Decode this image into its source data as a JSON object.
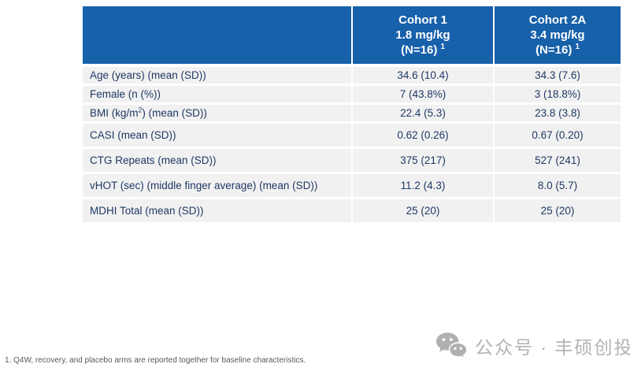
{
  "table": {
    "columns": [
      {
        "label": ""
      },
      {
        "label": "Cohort 1\n1.8 mg/kg\n(N=16) ^1^"
      },
      {
        "label": "Cohort 2A\n3.4 mg/kg\n(N=16) ^1^"
      }
    ],
    "rows": [
      {
        "label": "Age (years) (mean (SD))",
        "cohort1": "34.6 (10.4)",
        "cohort2a": "34.3 (7.6)"
      },
      {
        "label": "Female (n (%))",
        "cohort1": "7 (43.8%)",
        "cohort2a": "3 (18.8%)"
      },
      {
        "label": "BMI (kg/m^2^) (mean (SD))",
        "cohort1": "22.4 (5.3)",
        "cohort2a": "23.8 (3.8)"
      },
      {
        "label": "CASI (mean (SD))",
        "cohort1": "0.62 (0.26)",
        "cohort2a": "0.67 (0.20)"
      },
      {
        "label": "CTG Repeats (mean (SD))",
        "cohort1": "375 (217)",
        "cohort2a": "527 (241)"
      },
      {
        "label": "vHOT (sec) (middle finger average) (mean (SD))",
        "cohort1": "11.2 (4.3)",
        "cohort2a": "8.0 (5.7)"
      },
      {
        "label": "MDHI Total (mean (SD))",
        "cohort1": "25 (20)",
        "cohort2a": "25 (20)"
      }
    ]
  },
  "footnote": "1. Q4W, recovery, and placebo arms are reported together for baseline characteristics.",
  "watermark": {
    "icon": "wechat-icon",
    "text": "公众号 · 丰硕创投"
  },
  "colors": {
    "header_bg": "#1760aa",
    "header_text": "#ffffff",
    "body_text": "#1f3864",
    "row_bg": "#f1f1f1",
    "footnote_text": "#595959",
    "watermark": "#b3b3b3"
  }
}
